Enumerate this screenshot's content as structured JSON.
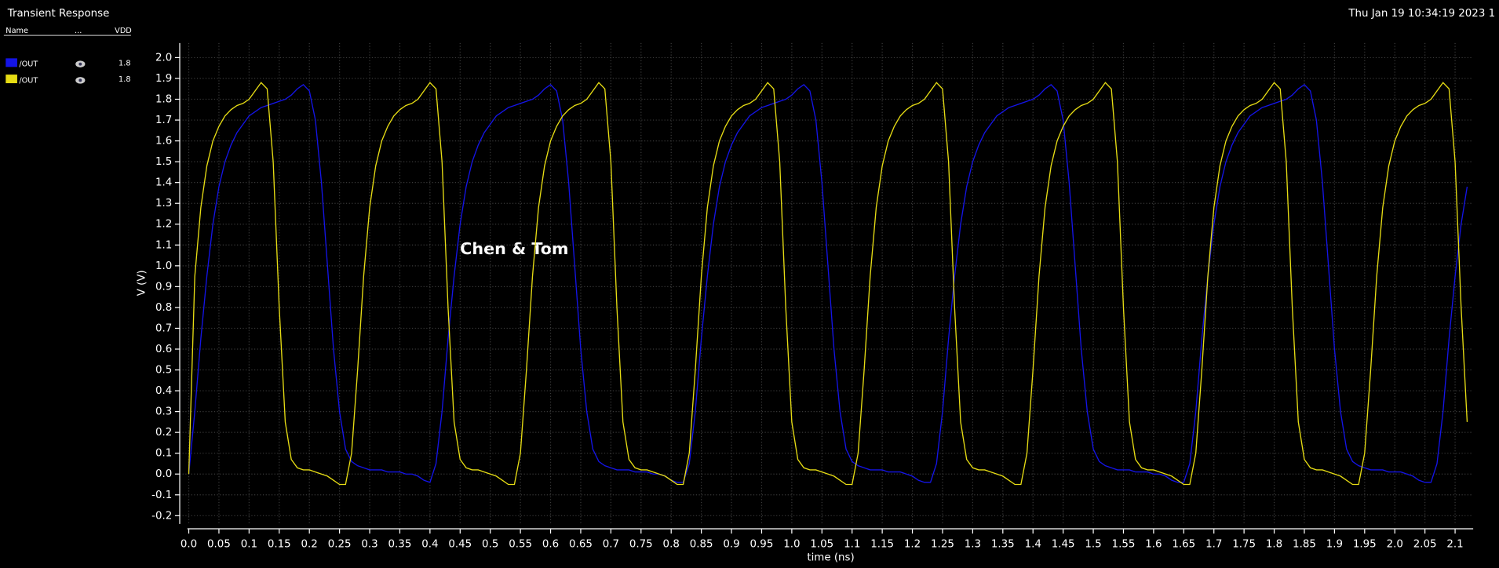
{
  "title": "Transient Response",
  "timestamp": "Thu Jan 19 10:34:19 2023  1",
  "legend_header": [
    "Name",
    "...",
    "VDD"
  ],
  "chart_data": {
    "type": "line",
    "annotation": "Chen & Tom",
    "x_label": "time (ns)",
    "y_label": "V (V)",
    "grid": true,
    "xlim": [
      -0.015,
      2.13
    ],
    "ylim": [
      -0.24,
      2.07
    ],
    "xticks": [
      {
        "value": 0,
        "label": "0.0"
      },
      0.05,
      0.1,
      0.15,
      0.2,
      0.25,
      0.3,
      0.35,
      0.4,
      0.45,
      0.5,
      0.55,
      0.6,
      0.65,
      0.7,
      0.75,
      0.8,
      0.85,
      0.9,
      0.95,
      {
        "value": 1,
        "label": "1.0"
      },
      1.05,
      1.1,
      1.15,
      1.2,
      1.25,
      1.3,
      1.35,
      1.4,
      1.45,
      1.5,
      1.55,
      1.6,
      1.65,
      1.7,
      1.75,
      1.8,
      1.85,
      1.9,
      1.95,
      {
        "value": 2,
        "label": "2.0"
      },
      2.05,
      2.1
    ],
    "yticks": [
      -0.2,
      -0.1,
      {
        "value": 0,
        "label": "0.0"
      },
      0.1,
      0.2,
      0.3,
      0.4,
      0.5,
      0.6,
      0.7,
      0.8,
      0.9,
      {
        "value": 1,
        "label": "1.0"
      },
      1.1,
      1.2,
      1.3,
      1.4,
      1.5,
      1.6,
      1.7,
      1.8,
      1.9,
      {
        "value": 2,
        "label": "2.0"
      }
    ],
    "x": [
      0,
      0.01,
      0.02,
      0.03,
      0.04,
      0.05,
      0.06,
      0.07,
      0.08,
      0.09,
      0.1,
      0.11,
      0.12,
      0.13,
      0.14,
      0.15,
      0.16,
      0.17,
      0.18,
      0.19,
      0.2,
      0.21,
      0.22,
      0.23,
      0.24,
      0.25,
      0.26,
      0.27,
      0.28,
      0.29,
      0.3,
      0.31,
      0.32,
      0.33,
      0.34,
      0.35,
      0.36,
      0.37,
      0.38,
      0.39,
      0.4,
      0.41,
      0.42,
      0.43,
      0.44,
      0.45,
      0.46,
      0.47,
      0.48,
      0.49,
      0.5,
      0.51,
      0.52,
      0.53,
      0.54,
      0.55,
      0.56,
      0.57,
      0.58,
      0.59,
      0.6,
      0.61,
      0.62,
      0.63,
      0.64,
      0.65,
      0.66,
      0.67,
      0.68,
      0.69,
      0.7,
      0.71,
      0.72,
      0.73,
      0.74,
      0.75,
      0.76,
      0.77,
      0.78,
      0.79,
      0.8,
      0.81,
      0.82,
      0.83,
      0.84,
      0.85,
      0.86,
      0.87,
      0.88,
      0.89,
      0.9,
      0.91,
      0.92,
      0.93,
      0.94,
      0.95,
      0.96,
      0.97,
      0.98,
      0.99,
      1.0,
      1.01,
      1.02,
      1.03,
      1.04,
      1.05,
      1.06,
      1.07,
      1.08,
      1.09,
      1.1,
      1.11,
      1.12,
      1.13,
      1.14,
      1.15,
      1.16,
      1.17,
      1.18,
      1.19,
      1.2,
      1.21,
      1.22,
      1.23,
      1.24,
      1.25,
      1.26,
      1.27,
      1.28,
      1.29,
      1.3,
      1.31,
      1.32,
      1.33,
      1.34,
      1.35,
      1.36,
      1.37,
      1.38,
      1.39,
      1.4,
      1.41,
      1.42,
      1.43,
      1.44,
      1.45,
      1.46,
      1.47,
      1.48,
      1.49,
      1.5,
      1.51,
      1.52,
      1.53,
      1.54,
      1.55,
      1.56,
      1.57,
      1.58,
      1.59,
      1.6,
      1.61,
      1.62,
      1.63,
      1.64,
      1.65,
      1.66,
      1.67,
      1.68,
      1.69,
      1.7,
      1.71,
      1.72,
      1.73,
      1.74,
      1.75,
      1.76,
      1.77,
      1.78,
      1.79,
      1.8,
      1.81,
      1.82,
      1.83,
      1.84,
      1.85,
      1.86,
      1.87,
      1.88,
      1.89,
      1.9,
      1.91,
      1.92,
      1.93,
      1.94,
      1.95,
      1.96,
      1.97,
      1.98,
      1.99,
      2.0,
      2.01,
      2.02,
      2.03,
      2.04,
      2.05,
      2.06,
      2.07,
      2.08,
      2.09,
      2.1,
      2.11,
      2.12
    ],
    "series": [
      {
        "name": "/OUT",
        "color": "#1414e6",
        "vdd": 1.8,
        "values": [
          0.0,
          0.3,
          0.65,
          0.95,
          1.2,
          1.38,
          1.5,
          1.58,
          1.64,
          1.68,
          1.72,
          1.74,
          1.76,
          1.77,
          1.78,
          1.79,
          1.8,
          1.82,
          1.85,
          1.87,
          1.84,
          1.7,
          1.4,
          1.0,
          0.6,
          0.3,
          0.12,
          0.06,
          0.04,
          0.03,
          0.02,
          0.02,
          0.02,
          0.01,
          0.01,
          0.01,
          0.0,
          0.0,
          -0.01,
          -0.03,
          -0.04,
          0.05,
          0.3,
          0.65,
          0.95,
          1.2,
          1.38,
          1.5,
          1.58,
          1.64,
          1.68,
          1.72,
          1.74,
          1.76,
          1.77,
          1.78,
          1.79,
          1.8,
          1.82,
          1.85,
          1.87,
          1.84,
          1.7,
          1.4,
          1.0,
          0.6,
          0.3,
          0.12,
          0.06,
          0.04,
          0.03,
          0.02,
          0.02,
          0.02,
          0.01,
          0.01,
          0.01,
          0.0,
          0.0,
          -0.01,
          -0.03,
          -0.04,
          -0.04,
          0.05,
          0.3,
          0.65,
          0.95,
          1.2,
          1.38,
          1.5,
          1.58,
          1.64,
          1.68,
          1.72,
          1.74,
          1.76,
          1.77,
          1.78,
          1.79,
          1.8,
          1.82,
          1.85,
          1.87,
          1.84,
          1.7,
          1.4,
          1.0,
          0.6,
          0.3,
          0.12,
          0.06,
          0.04,
          0.03,
          0.02,
          0.02,
          0.02,
          0.01,
          0.01,
          0.01,
          0.0,
          -0.01,
          -0.03,
          -0.04,
          -0.04,
          0.05,
          0.3,
          0.65,
          0.95,
          1.2,
          1.38,
          1.5,
          1.58,
          1.64,
          1.68,
          1.72,
          1.74,
          1.76,
          1.77,
          1.78,
          1.79,
          1.8,
          1.82,
          1.85,
          1.87,
          1.84,
          1.7,
          1.4,
          1.0,
          0.6,
          0.3,
          0.12,
          0.06,
          0.04,
          0.03,
          0.02,
          0.02,
          0.02,
          0.01,
          0.01,
          0.01,
          0.0,
          0.0,
          -0.01,
          -0.03,
          -0.04,
          -0.04,
          0.05,
          0.3,
          0.65,
          0.95,
          1.2,
          1.38,
          1.5,
          1.58,
          1.64,
          1.68,
          1.72,
          1.74,
          1.76,
          1.77,
          1.78,
          1.79,
          1.8,
          1.82,
          1.85,
          1.87,
          1.84,
          1.7,
          1.4,
          1.0,
          0.6,
          0.3,
          0.12,
          0.06,
          0.04,
          0.03,
          0.02,
          0.02,
          0.02,
          0.01,
          0.01,
          0.01,
          0.0,
          -0.01,
          -0.03,
          -0.04,
          -0.04,
          0.05,
          0.3,
          0.65,
          0.95,
          1.2,
          1.38
        ]
      },
      {
        "name": "/OUT",
        "color": "#e6dc14",
        "vdd": 1.8,
        "values": [
          0.0,
          0.95,
          1.28,
          1.48,
          1.6,
          1.67,
          1.72,
          1.75,
          1.77,
          1.78,
          1.8,
          1.84,
          1.88,
          1.85,
          1.5,
          0.8,
          0.25,
          0.07,
          0.03,
          0.02,
          0.02,
          0.01,
          0.0,
          -0.01,
          -0.03,
          -0.05,
          -0.05,
          0.1,
          0.5,
          0.95,
          1.28,
          1.48,
          1.6,
          1.67,
          1.72,
          1.75,
          1.77,
          1.78,
          1.8,
          1.84,
          1.88,
          1.85,
          1.5,
          0.8,
          0.25,
          0.07,
          0.03,
          0.02,
          0.02,
          0.01,
          0.0,
          -0.01,
          -0.03,
          -0.05,
          -0.05,
          0.1,
          0.5,
          0.95,
          1.28,
          1.48,
          1.6,
          1.67,
          1.72,
          1.75,
          1.77,
          1.78,
          1.8,
          1.84,
          1.88,
          1.85,
          1.5,
          0.8,
          0.25,
          0.07,
          0.03,
          0.02,
          0.02,
          0.01,
          0.0,
          -0.01,
          -0.03,
          -0.05,
          -0.05,
          0.1,
          0.5,
          0.95,
          1.28,
          1.48,
          1.6,
          1.67,
          1.72,
          1.75,
          1.77,
          1.78,
          1.8,
          1.84,
          1.88,
          1.85,
          1.5,
          0.8,
          0.25,
          0.07,
          0.03,
          0.02,
          0.02,
          0.01,
          0.0,
          -0.01,
          -0.03,
          -0.05,
          -0.05,
          0.1,
          0.5,
          0.95,
          1.28,
          1.48,
          1.6,
          1.67,
          1.72,
          1.75,
          1.77,
          1.78,
          1.8,
          1.84,
          1.88,
          1.85,
          1.5,
          0.8,
          0.25,
          0.07,
          0.03,
          0.02,
          0.02,
          0.01,
          0.0,
          -0.01,
          -0.03,
          -0.05,
          -0.05,
          0.1,
          0.5,
          0.95,
          1.28,
          1.48,
          1.6,
          1.67,
          1.72,
          1.75,
          1.77,
          1.78,
          1.8,
          1.84,
          1.88,
          1.85,
          1.5,
          0.8,
          0.25,
          0.07,
          0.03,
          0.02,
          0.02,
          0.01,
          0.0,
          -0.01,
          -0.03,
          -0.05,
          -0.05,
          0.1,
          0.5,
          0.95,
          1.28,
          1.48,
          1.6,
          1.67,
          1.72,
          1.75,
          1.77,
          1.78,
          1.8,
          1.84,
          1.88,
          1.85,
          1.5,
          0.8,
          0.25,
          0.07,
          0.03,
          0.02,
          0.02,
          0.01,
          0.0,
          -0.01,
          -0.03,
          -0.05,
          -0.05,
          0.1,
          0.5,
          0.95,
          1.28,
          1.48,
          1.6,
          1.67,
          1.72,
          1.75,
          1.77,
          1.78,
          1.8,
          1.84,
          1.88,
          1.85,
          1.5,
          0.8,
          0.25
        ]
      }
    ]
  }
}
